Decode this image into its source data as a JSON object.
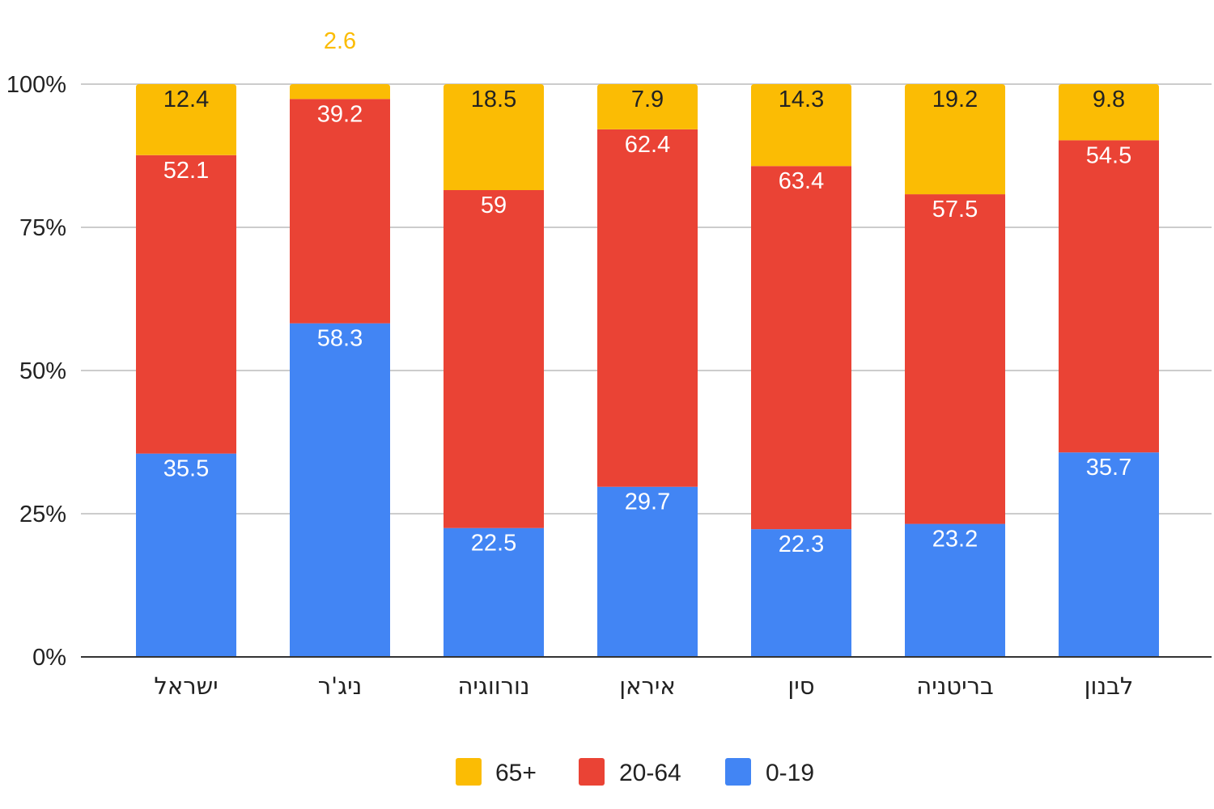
{
  "chart_data": {
    "type": "bar",
    "stacked": true,
    "orientation": "vertical",
    "categories": [
      "ישראל",
      "ניג'ר",
      "נורווגיה",
      "איראן",
      "סין",
      "בריטניה",
      "לבנון"
    ],
    "series": [
      {
        "name": "0-19",
        "color": "#4285F4",
        "label_color": "#ffffff",
        "values": [
          35.5,
          58.3,
          22.5,
          29.7,
          22.3,
          23.2,
          35.7
        ]
      },
      {
        "name": "20-64",
        "color": "#EA4335",
        "label_color": "#ffffff",
        "values": [
          52.1,
          39.2,
          59,
          62.4,
          63.4,
          57.5,
          54.5
        ]
      },
      {
        "name": "65+",
        "color": "#FBBC04",
        "label_color": "#222222",
        "values": [
          12.4,
          2.6,
          18.5,
          7.9,
          14.3,
          19.2,
          9.8
        ]
      }
    ],
    "data_labels": [
      [
        "35.5",
        "58.3",
        "22.5",
        "29.7",
        "22.3",
        "23.2",
        "35.7"
      ],
      [
        "52.1",
        "39.2",
        "59",
        "62.4",
        "63.4",
        "57.5",
        "54.5"
      ],
      [
        "12.4",
        "2.6",
        "18.5",
        "7.9",
        "14.3",
        "19.2",
        "9.8"
      ]
    ],
    "outside_label_color": "#FBBC04",
    "y_ticks": [
      "0%",
      "25%",
      "50%",
      "75%",
      "100%"
    ],
    "y_tick_values": [
      0,
      25,
      50,
      75,
      100
    ],
    "ylim": [
      0,
      100
    ],
    "grid": true,
    "legend_position": "bottom",
    "legend_order": [
      "65+",
      "20-64",
      "0-19"
    ],
    "title": "",
    "xlabel": "",
    "ylabel": ""
  }
}
